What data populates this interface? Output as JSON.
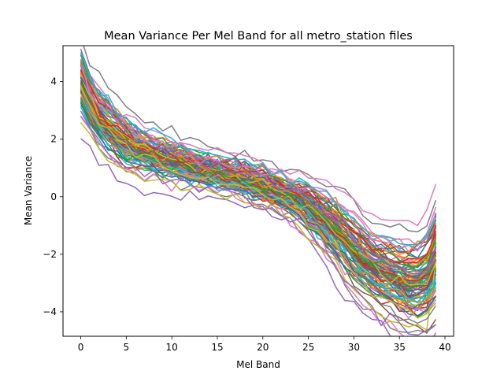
{
  "chart_data": {
    "type": "line",
    "title": "Mean Variance Per Mel Band for all metro_station files",
    "xlabel": "Mel Band",
    "ylabel": "Mean Variance",
    "xlim": [
      -1.95,
      40.95
    ],
    "ylim": [
      -4.85,
      5.25
    ],
    "xticks": [
      0,
      5,
      10,
      15,
      20,
      25,
      30,
      35,
      40
    ],
    "yticks": [
      -4,
      -2,
      0,
      2,
      4
    ],
    "grid": false,
    "legend": "none",
    "num_series": 100,
    "x": [
      0,
      1,
      2,
      3,
      4,
      5,
      6,
      7,
      8,
      9,
      10,
      11,
      12,
      13,
      14,
      15,
      16,
      17,
      18,
      19,
      20,
      21,
      22,
      23,
      24,
      25,
      26,
      27,
      28,
      29,
      30,
      31,
      32,
      33,
      34,
      35,
      36,
      37,
      38,
      39
    ],
    "mean_curve": [
      4.0,
      3.3,
      2.8,
      2.45,
      2.15,
      1.9,
      1.7,
      1.55,
      1.45,
      1.35,
      1.25,
      1.15,
      1.05,
      0.97,
      0.9,
      0.82,
      0.75,
      0.68,
      0.6,
      0.5,
      0.38,
      0.25,
      0.12,
      0.0,
      -0.15,
      -0.35,
      -0.6,
      -0.9,
      -1.2,
      -1.55,
      -1.9,
      -2.2,
      -2.45,
      -2.65,
      -2.8,
      -2.95,
      -3.05,
      -3.05,
      -2.9,
      -2.3
    ],
    "spread_curve": [
      0.45,
      0.4,
      0.42,
      0.42,
      0.42,
      0.4,
      0.38,
      0.37,
      0.35,
      0.33,
      0.32,
      0.3,
      0.3,
      0.3,
      0.28,
      0.28,
      0.28,
      0.28,
      0.3,
      0.3,
      0.3,
      0.3,
      0.3,
      0.32,
      0.35,
      0.4,
      0.45,
      0.5,
      0.55,
      0.6,
      0.62,
      0.62,
      0.62,
      0.65,
      0.68,
      0.7,
      0.72,
      0.75,
      0.8,
      0.9
    ],
    "colors": [
      "#1f77b4",
      "#ff7f0e",
      "#2ca02c",
      "#d62728",
      "#9467bd",
      "#8c564b",
      "#e377c2",
      "#7f7f7f",
      "#bcbd22",
      "#17becf"
    ]
  }
}
